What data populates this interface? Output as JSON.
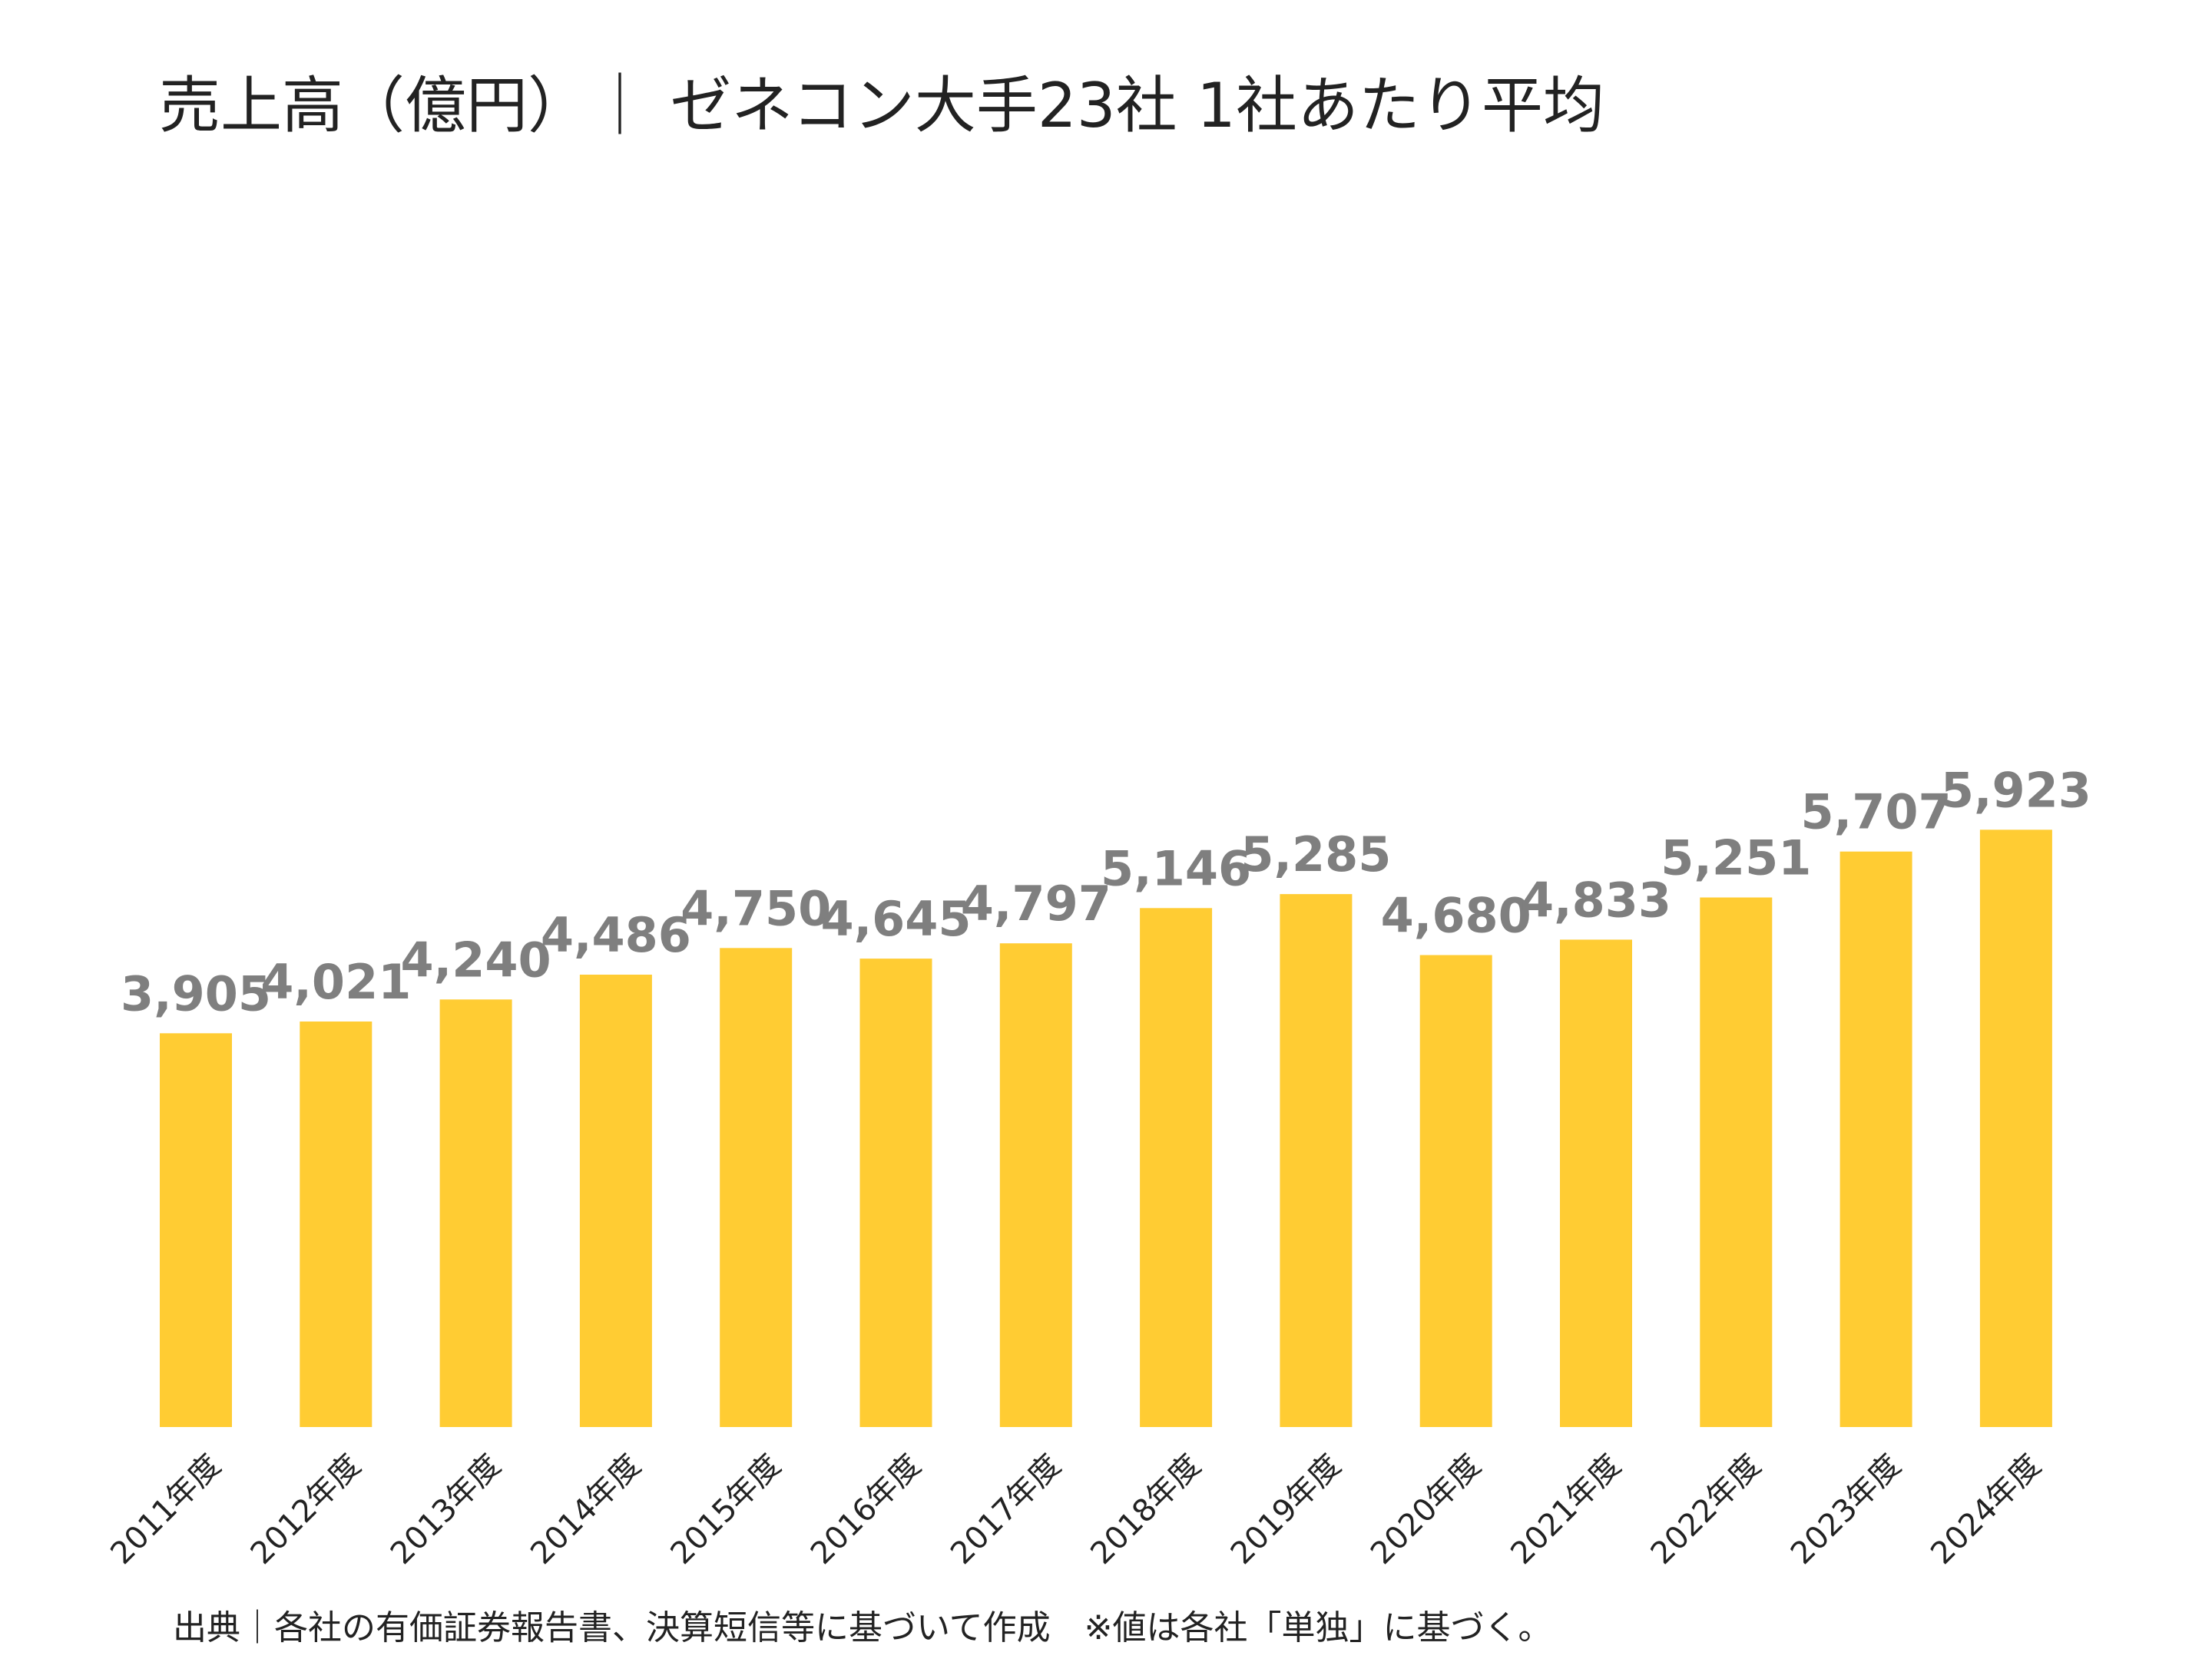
{
  "chart_data": {
    "type": "bar",
    "title": "売上高（億円）｜ ゼネコン大手23社 1社あたり平均",
    "categories": [
      "2011年度",
      "2012年度",
      "2013年度",
      "2014年度",
      "2015年度",
      "2016年度",
      "2017年度",
      "2018年度",
      "2019年度",
      "2020年度",
      "2021年度",
      "2022年度",
      "2023年度",
      "2024年度"
    ],
    "values": [
      3905,
      4021,
      4240,
      4486,
      4750,
      4645,
      4797,
      5146,
      5285,
      4680,
      4833,
      5251,
      5707,
      5923
    ],
    "value_labels": [
      "3,905",
      "4,021",
      "4,240",
      "4,486",
      "4,750",
      "4,645",
      "4,797",
      "5,146",
      "5,285",
      "4,680",
      "4,833",
      "5,251",
      "5,707",
      "5,923"
    ],
    "xlabel": "",
    "ylabel": "",
    "ylim": [
      0,
      10000
    ],
    "grid": false,
    "legend": "none",
    "bar_color": "#FFCC33",
    "label_color": "#7F7F7F"
  },
  "footer": {
    "source": "出典｜各社の有価証券報告書、決算短信等に基づいて作成　※値は各社「単独」に基づく。"
  }
}
